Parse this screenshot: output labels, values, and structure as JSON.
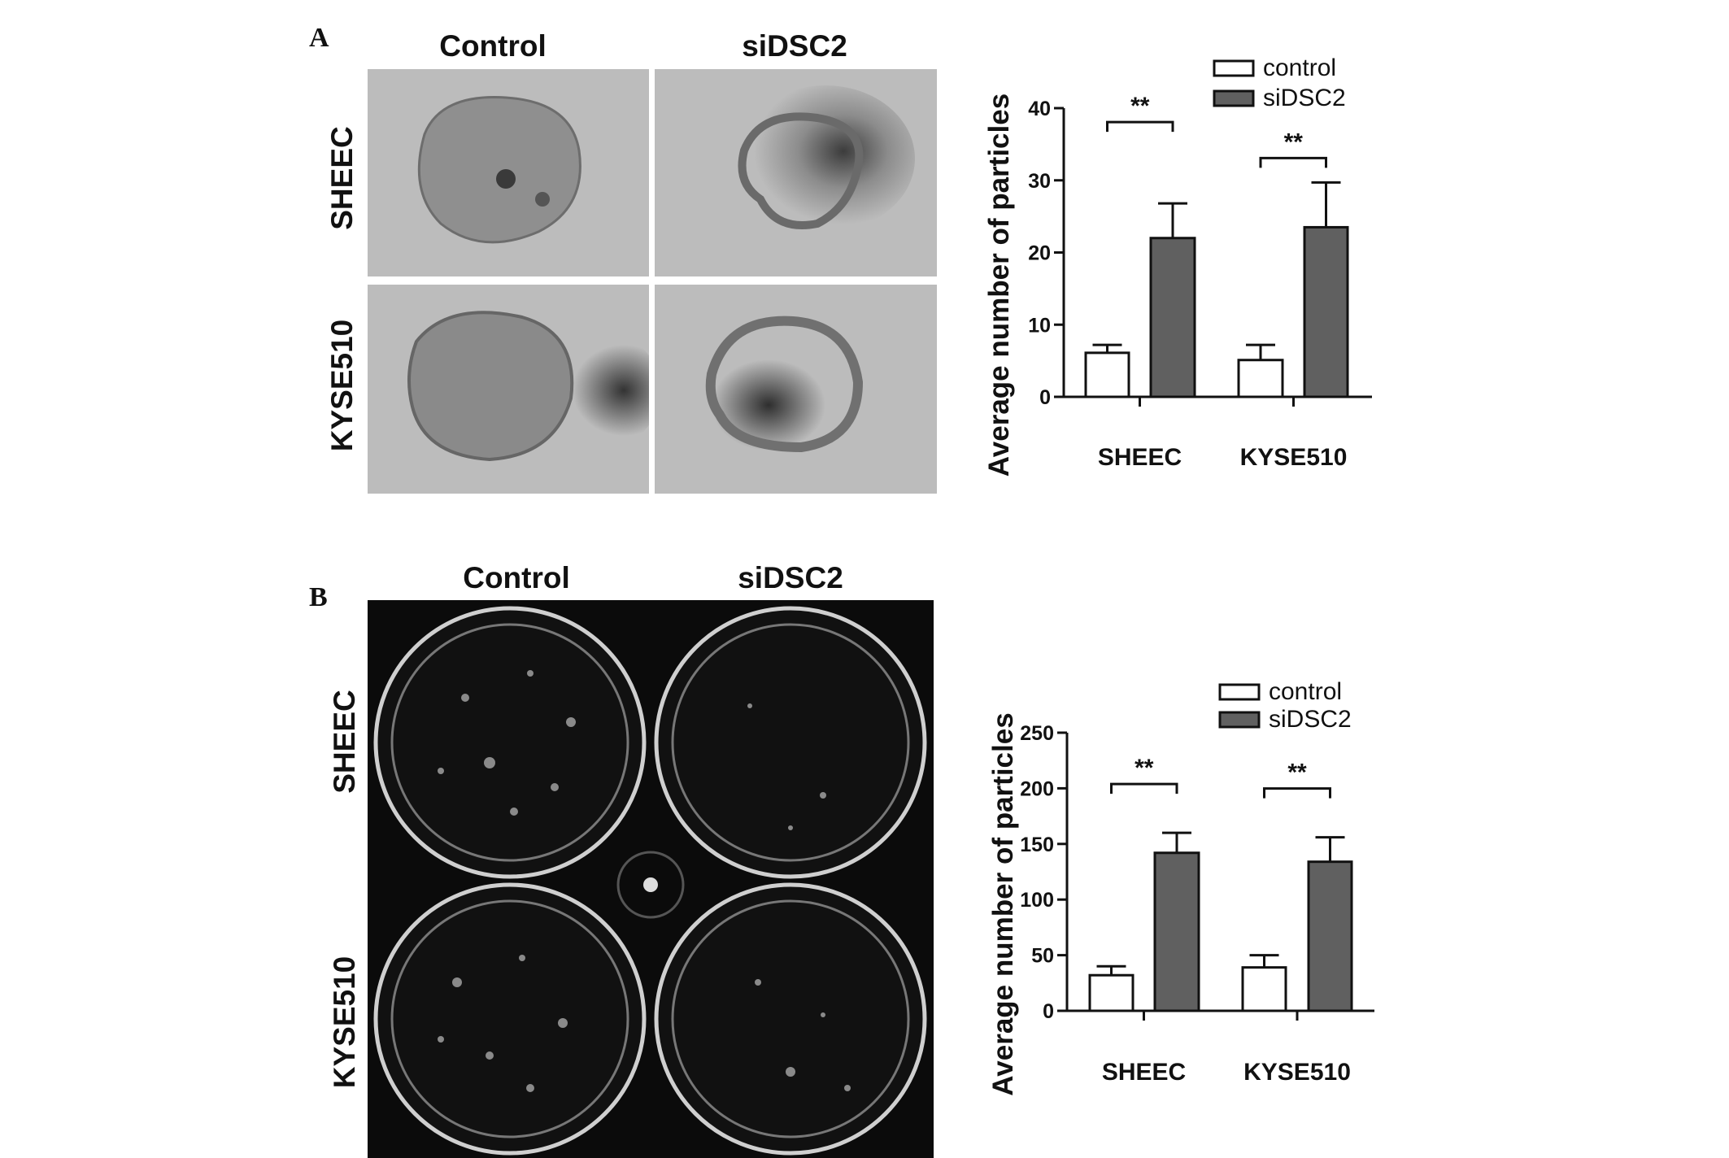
{
  "panels": {
    "A": {
      "letter": "A",
      "col_labels": [
        "Control",
        "siDSC2"
      ],
      "row_labels": [
        "SHEEC",
        "KYSE510"
      ]
    },
    "B": {
      "letter": "B",
      "col_labels": [
        "Control",
        "siDSC2"
      ],
      "row_labels": [
        "SHEEC",
        "KYSE510"
      ]
    }
  },
  "chart_data": [
    {
      "type": "bar",
      "panel": "A",
      "categories": [
        "SHEEC",
        "KYSE510"
      ],
      "series": [
        {
          "name": "control",
          "values": [
            6.1,
            5.1
          ],
          "error_upper": [
            7.2,
            7.2
          ],
          "color": "#ffffff"
        },
        {
          "name": "siDSC2",
          "values": [
            22.0,
            23.5
          ],
          "error_upper": [
            26.8,
            29.7
          ],
          "color": "#606060"
        }
      ],
      "ylabel": "Average number of particles",
      "xlabel": "",
      "ylim": [
        0,
        40
      ],
      "yticks": [
        "0",
        "10",
        "20",
        "30",
        "40"
      ],
      "significance": [
        "**",
        "**"
      ],
      "legend": "top-right",
      "grid": false
    },
    {
      "type": "bar",
      "panel": "B",
      "categories": [
        "SHEEC",
        "KYSE510"
      ],
      "series": [
        {
          "name": "control",
          "values": [
            32,
            39
          ],
          "error_upper": [
            40,
            50
          ],
          "color": "#ffffff"
        },
        {
          "name": "siDSC2",
          "values": [
            142,
            134
          ],
          "error_upper": [
            160,
            156
          ],
          "color": "#606060"
        }
      ],
      "ylabel": "Average number of particles",
      "xlabel": "",
      "ylim": [
        0,
        250
      ],
      "yticks": [
        "0",
        "50",
        "100",
        "150",
        "200",
        "250"
      ],
      "significance": [
        "**",
        "**"
      ],
      "legend": "top-right",
      "grid": false
    }
  ]
}
